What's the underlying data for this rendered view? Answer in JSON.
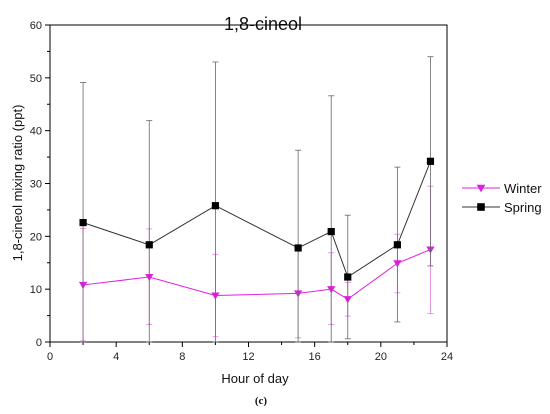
{
  "chart_data": {
    "type": "line",
    "title": "1,8-cineol",
    "xlabel": "Hour of day",
    "ylabel": "1,8-cineol mixing ratio   (ppt)",
    "caption": "(c)",
    "xlim": [
      0,
      24
    ],
    "ylim": [
      0,
      60
    ],
    "x_ticks": [
      0,
      4,
      8,
      12,
      16,
      20,
      24
    ],
    "y_ticks": [
      0,
      10,
      20,
      30,
      40,
      50,
      60
    ],
    "grid": false,
    "legend_position": "right",
    "series": [
      {
        "name": "Winter",
        "color": "#e020e0",
        "marker": "triangle-down",
        "x": [
          2,
          6,
          10,
          15,
          17,
          18,
          21,
          23
        ],
        "y": [
          10.8,
          12.3,
          8.8,
          9.2,
          10.0,
          8.1,
          14.9,
          17.5
        ],
        "err_low": [
          0.2,
          3.3,
          1.0,
          0.8,
          3.3,
          4.9,
          9.3,
          5.4
        ],
        "err_high": [
          21.5,
          21.4,
          16.6,
          17.6,
          16.9,
          11.3,
          20.4,
          29.5
        ]
      },
      {
        "name": "Spring",
        "color": "#000000",
        "marker": "square",
        "x": [
          2,
          6,
          10,
          15,
          17,
          18,
          21,
          23
        ],
        "y": [
          22.6,
          18.4,
          25.8,
          17.8,
          20.9,
          12.3,
          18.4,
          34.2
        ],
        "err_low": [
          0.0,
          0.0,
          0.0,
          0.0,
          0.0,
          0.6,
          3.8,
          14.4
        ],
        "err_high": [
          49.1,
          41.9,
          53.0,
          36.3,
          46.6,
          24.0,
          33.1,
          54.0
        ]
      }
    ]
  }
}
